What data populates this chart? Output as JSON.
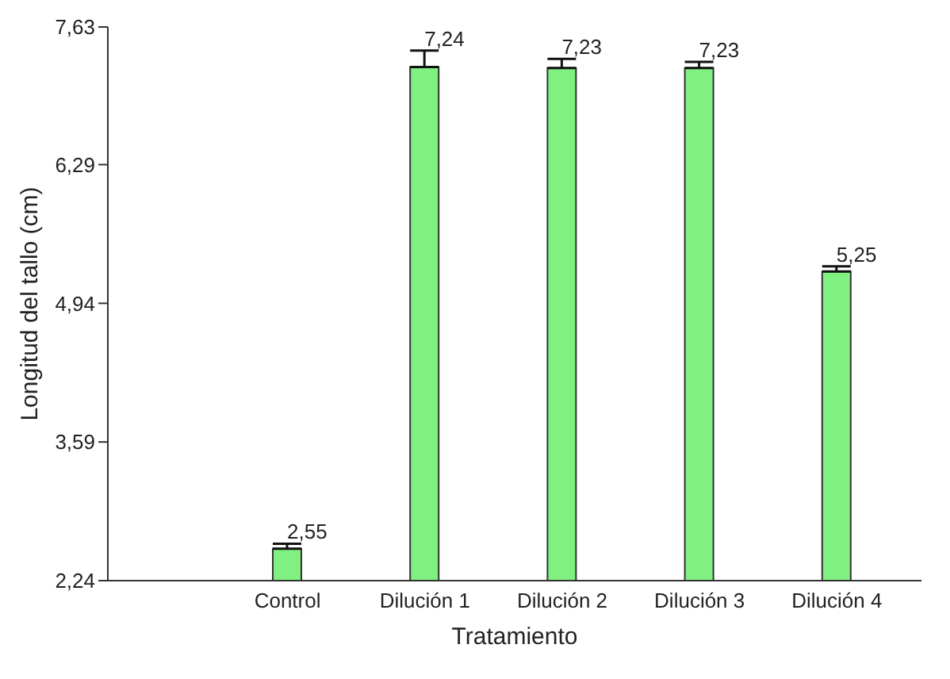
{
  "chart_data": {
    "type": "bar",
    "xlabel": "Tratamiento",
    "ylabel": "Longitud del tallo (cm)",
    "categories": [
      "Control",
      "Dilución 1",
      "Dilución 2",
      "Dilución 3",
      "Dilución 4"
    ],
    "values": [
      2.55,
      7.24,
      7.23,
      7.23,
      5.25
    ],
    "errors": [
      [
        2.55,
        2.6
      ],
      [
        7.24,
        7.4
      ],
      [
        7.23,
        7.32
      ],
      [
        7.23,
        7.29
      ],
      [
        5.25,
        5.3
      ]
    ],
    "value_labels": [
      "2,55",
      "7,24",
      "7,23",
      "7,23",
      "5,25"
    ],
    "color": "#80f080",
    "ylim": [
      2.24,
      7.63
    ],
    "yticks": [
      {
        "value": 2.24,
        "label": "2,24"
      },
      {
        "value": 3.59,
        "label": "3,59"
      },
      {
        "value": 4.94,
        "label": "4,94"
      },
      {
        "value": 6.29,
        "label": "6,29"
      },
      {
        "value": 7.63,
        "label": "7,63"
      }
    ],
    "grid": false
  }
}
